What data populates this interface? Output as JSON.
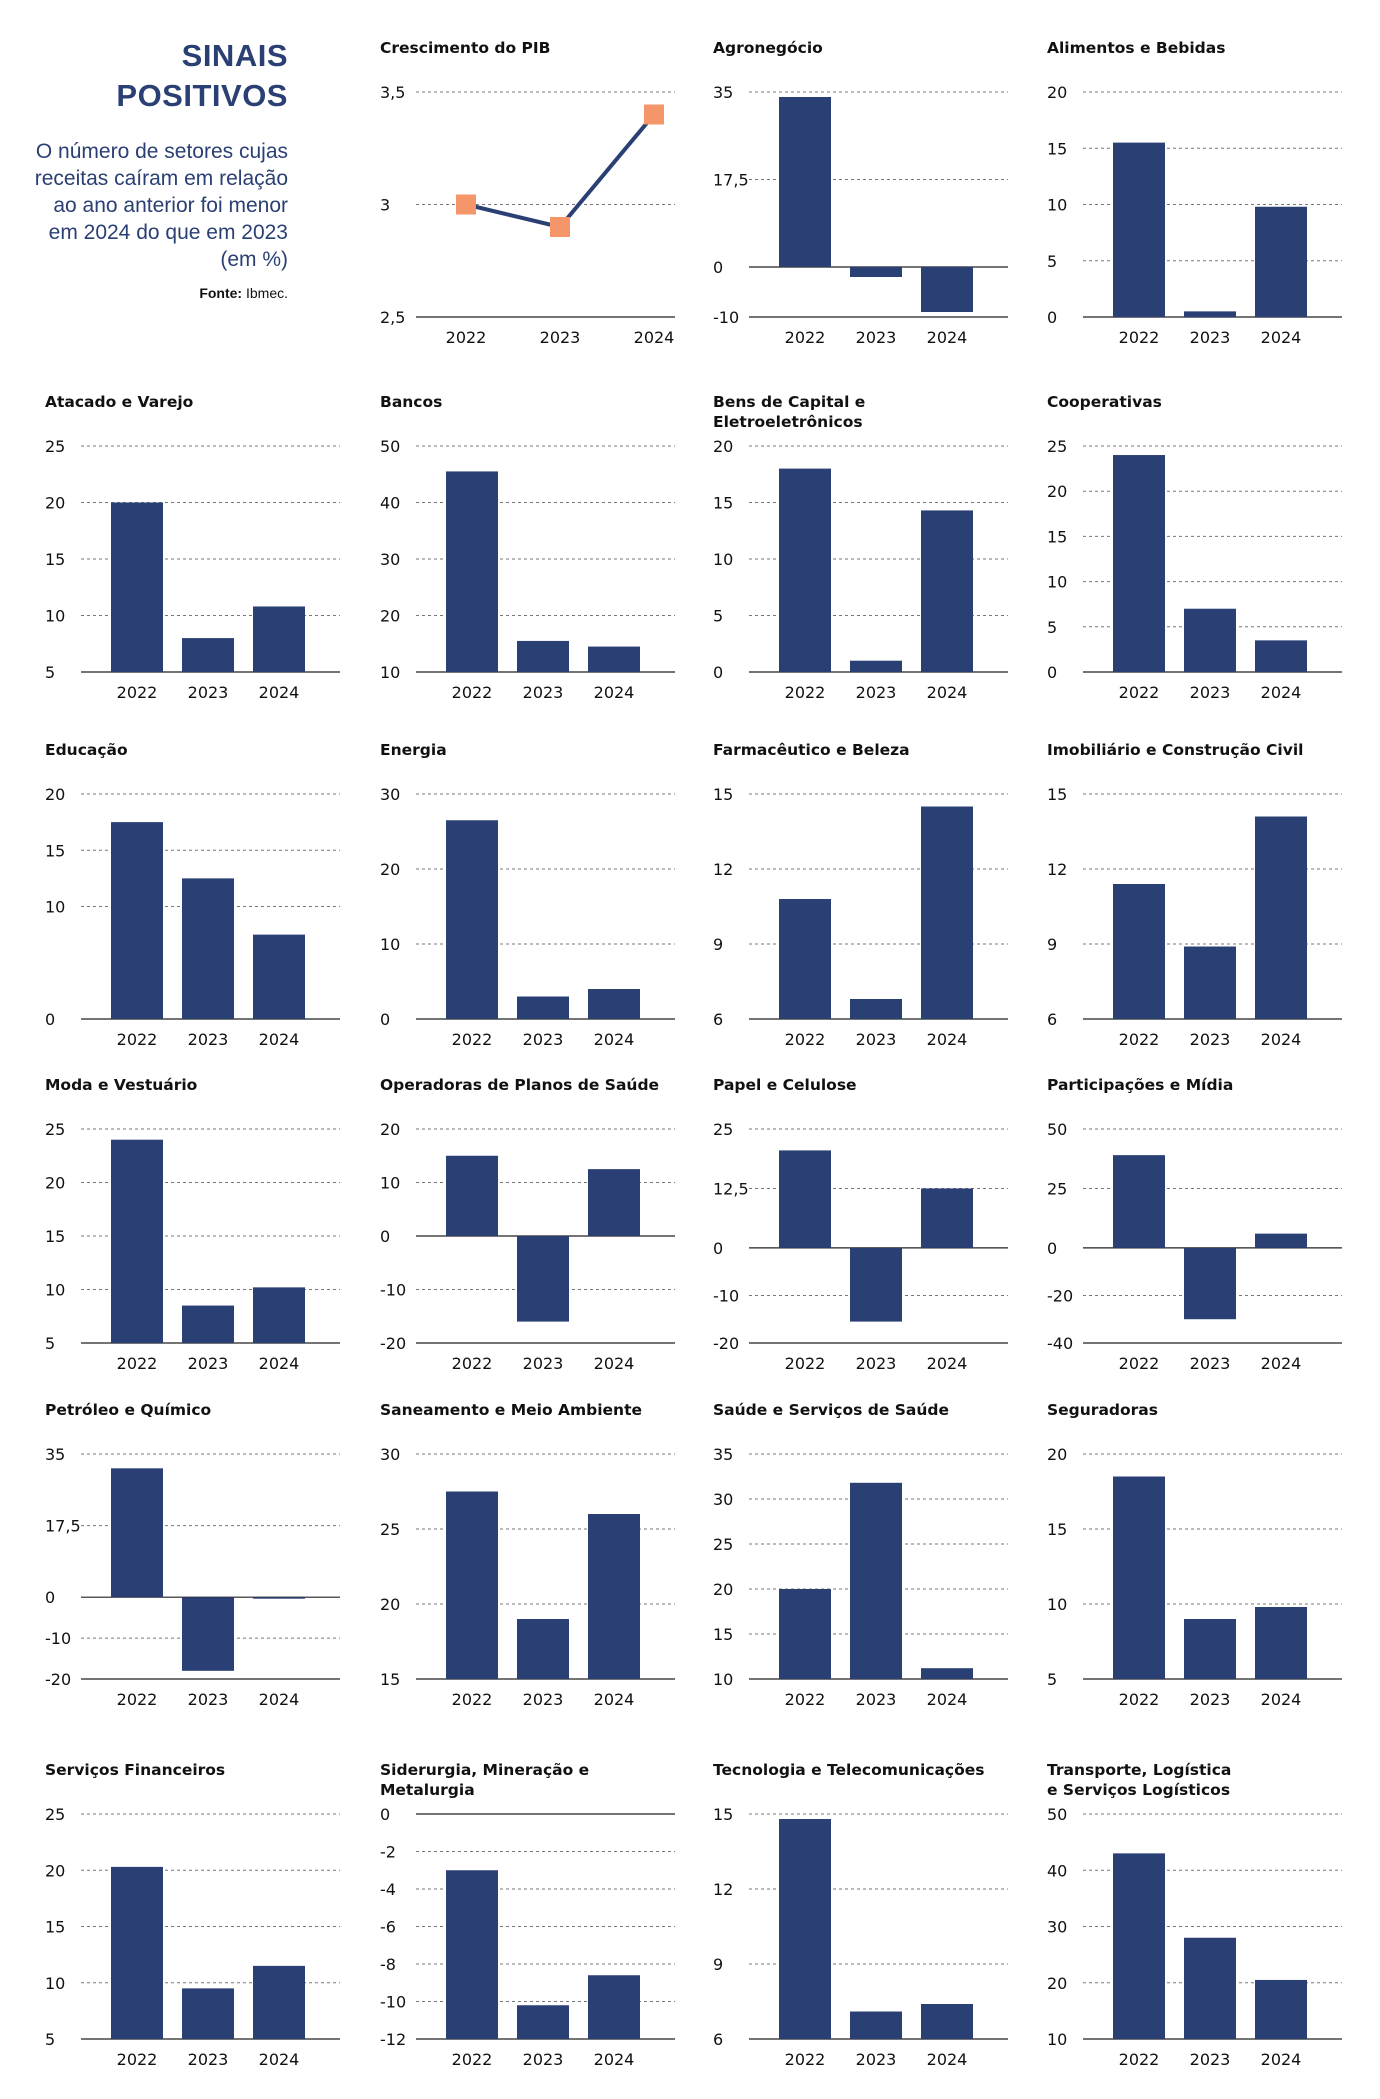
{
  "header": {
    "title_line1": "SINAIS",
    "title_line2": "POSITIVOS",
    "subtitle": "O número de setores cujas receitas caíram em relação ao ano anterior foi menor em 2024 do que em 2023 (em %)",
    "source_label": "Fonte:",
    "source_value": "Ibmec."
  },
  "colors": {
    "bar": "#2a3f73",
    "marker": "#f4956a",
    "title": "#2a3f73"
  },
  "chart_data": [
    {
      "type": "line",
      "title": "Crescimento do PIB",
      "categories": [
        "2022",
        "2023",
        "2024"
      ],
      "values": [
        3.0,
        2.9,
        3.4
      ],
      "ylim": [
        2.5,
        3.5
      ],
      "yticks": [
        "2,5",
        "3",
        "3,5"
      ],
      "yticks_num": [
        2.5,
        3,
        3.5
      ]
    },
    {
      "type": "bar",
      "title": "Agronegócio",
      "categories": [
        "2022",
        "2023",
        "2024"
      ],
      "values": [
        34,
        -2,
        -9
      ],
      "ylim": [
        -10,
        35
      ],
      "yticks": [
        "-10",
        "0",
        "17,5",
        "35"
      ],
      "yticks_num": [
        -10,
        0,
        17.5,
        35
      ]
    },
    {
      "type": "bar",
      "title": "Alimentos e Bebidas",
      "categories": [
        "2022",
        "2023",
        "2024"
      ],
      "values": [
        15.5,
        0.5,
        9.8
      ],
      "ylim": [
        0,
        20
      ],
      "yticks": [
        "0",
        "5",
        "10",
        "15",
        "20"
      ],
      "yticks_num": [
        0,
        5,
        10,
        15,
        20
      ]
    },
    {
      "type": "bar",
      "title": "Atacado e Varejo",
      "categories": [
        "2022",
        "2023",
        "2024"
      ],
      "values": [
        20,
        8,
        10.8
      ],
      "ylim": [
        5,
        25
      ],
      "yticks": [
        "5",
        "10",
        "15",
        "20",
        "25"
      ],
      "yticks_num": [
        5,
        10,
        15,
        20,
        25
      ]
    },
    {
      "type": "bar",
      "title": "Bancos",
      "categories": [
        "2022",
        "2023",
        "2024"
      ],
      "values": [
        45.5,
        15.5,
        14.5
      ],
      "ylim": [
        10,
        50
      ],
      "yticks": [
        "10",
        "20",
        "30",
        "40",
        "50"
      ],
      "yticks_num": [
        10,
        20,
        30,
        40,
        50
      ]
    },
    {
      "type": "bar",
      "title": "Bens de Capital e Eletroeletrônicos",
      "categories": [
        "2022",
        "2023",
        "2024"
      ],
      "values": [
        18,
        1,
        14.3
      ],
      "ylim": [
        0,
        20
      ],
      "yticks": [
        "0",
        "5",
        "10",
        "15",
        "20"
      ],
      "yticks_num": [
        0,
        5,
        10,
        15,
        20
      ]
    },
    {
      "type": "bar",
      "title": "Cooperativas",
      "categories": [
        "2022",
        "2023",
        "2024"
      ],
      "values": [
        24,
        7,
        3.5
      ],
      "ylim": [
        0,
        25
      ],
      "yticks": [
        "0",
        "5",
        "10",
        "15",
        "20",
        "25"
      ],
      "yticks_num": [
        0,
        5,
        10,
        15,
        20,
        25
      ]
    },
    {
      "type": "bar",
      "title": "Educação",
      "categories": [
        "2022",
        "2023",
        "2024"
      ],
      "values": [
        17.5,
        12.5,
        7.5
      ],
      "ylim": [
        0,
        20
      ],
      "yticks": [
        "0",
        "10",
        "15",
        "20"
      ],
      "yticks_num": [
        0,
        10,
        15,
        20
      ]
    },
    {
      "type": "bar",
      "title": "Energia",
      "categories": [
        "2022",
        "2023",
        "2024"
      ],
      "values": [
        26.5,
        3,
        4
      ],
      "ylim": [
        0,
        30
      ],
      "yticks": [
        "0",
        "10",
        "20",
        "30"
      ],
      "yticks_num": [
        0,
        10,
        20,
        30
      ]
    },
    {
      "type": "bar",
      "title": "Farmacêutico e Beleza",
      "categories": [
        "2022",
        "2023",
        "2024"
      ],
      "values": [
        10.8,
        6.8,
        14.5
      ],
      "ylim": [
        6,
        15
      ],
      "yticks": [
        "6",
        "9",
        "12",
        "15"
      ],
      "yticks_num": [
        6,
        9,
        12,
        15
      ]
    },
    {
      "type": "bar",
      "title": "Imobiliário e Construção Civil",
      "categories": [
        "2022",
        "2023",
        "2024"
      ],
      "values": [
        11.4,
        8.9,
        14.1
      ],
      "ylim": [
        6,
        15
      ],
      "yticks": [
        "6",
        "9",
        "12",
        "15"
      ],
      "yticks_num": [
        6,
        9,
        12,
        15
      ]
    },
    {
      "type": "bar",
      "title": "Moda e Vestuário",
      "categories": [
        "2022",
        "2023",
        "2024"
      ],
      "values": [
        24,
        8.5,
        10.2
      ],
      "ylim": [
        5,
        25
      ],
      "yticks": [
        "5",
        "10",
        "15",
        "20",
        "25"
      ],
      "yticks_num": [
        5,
        10,
        15,
        20,
        25
      ]
    },
    {
      "type": "bar",
      "title": "Operadoras de Planos de Saúde",
      "categories": [
        "2022",
        "2023",
        "2024"
      ],
      "values": [
        15,
        -16,
        12.5
      ],
      "ylim": [
        -20,
        20
      ],
      "yticks": [
        "-20",
        "-10",
        "0",
        "10",
        "20"
      ],
      "yticks_num": [
        -20,
        -10,
        0,
        10,
        20
      ]
    },
    {
      "type": "bar",
      "title": "Papel e Celulose",
      "categories": [
        "2022",
        "2023",
        "2024"
      ],
      "values": [
        20.5,
        -15.5,
        12.5
      ],
      "ylim": [
        -20,
        25
      ],
      "yticks": [
        "-20",
        "-10",
        "0",
        "12,5",
        "25"
      ],
      "yticks_num": [
        -20,
        -10,
        0,
        12.5,
        25
      ]
    },
    {
      "type": "bar",
      "title": "Participações e Mídia",
      "categories": [
        "2022",
        "2023",
        "2024"
      ],
      "values": [
        39,
        -30,
        6
      ],
      "ylim": [
        -40,
        50
      ],
      "yticks": [
        "-40",
        "-20",
        "0",
        "25",
        "50"
      ],
      "yticks_num": [
        -40,
        -20,
        0,
        25,
        50
      ]
    },
    {
      "type": "bar",
      "title": "Petróleo e Químico",
      "categories": [
        "2022",
        "2023",
        "2024"
      ],
      "values": [
        31.5,
        -18,
        -0.3
      ],
      "ylim": [
        -20,
        35
      ],
      "yticks": [
        "-20",
        "-10",
        "0",
        "17,5",
        "35"
      ],
      "yticks_num": [
        -20,
        -10,
        0,
        17.5,
        35
      ]
    },
    {
      "type": "bar",
      "title": "Saneamento e Meio Ambiente",
      "categories": [
        "2022",
        "2023",
        "2024"
      ],
      "values": [
        27.5,
        19,
        26
      ],
      "ylim": [
        15,
        30
      ],
      "yticks": [
        "15",
        "20",
        "25",
        "30"
      ],
      "yticks_num": [
        15,
        20,
        25,
        30
      ]
    },
    {
      "type": "bar",
      "title": "Saúde e Serviços de Saúde",
      "categories": [
        "2022",
        "2023",
        "2024"
      ],
      "values": [
        20,
        31.8,
        11.2
      ],
      "ylim": [
        10,
        35
      ],
      "yticks": [
        "10",
        "15",
        "20",
        "25",
        "30",
        "35"
      ],
      "yticks_num": [
        10,
        15,
        20,
        25,
        30,
        35
      ]
    },
    {
      "type": "bar",
      "title": "Seguradoras",
      "categories": [
        "2022",
        "2023",
        "2024"
      ],
      "values": [
        18.5,
        9,
        9.8
      ],
      "ylim": [
        5,
        20
      ],
      "yticks": [
        "5",
        "10",
        "15",
        "20"
      ],
      "yticks_num": [
        5,
        10,
        15,
        20
      ]
    },
    {
      "type": "bar",
      "title": "Serviços Financeiros",
      "categories": [
        "2022",
        "2023",
        "2024"
      ],
      "values": [
        20.3,
        9.5,
        11.5
      ],
      "ylim": [
        5,
        25
      ],
      "yticks": [
        "5",
        "10",
        "15",
        "20",
        "25"
      ],
      "yticks_num": [
        5,
        10,
        15,
        20,
        25
      ]
    },
    {
      "type": "bar",
      "title": "Siderurgia, Mineração e Metalurgia",
      "categories": [
        "2022",
        "2023",
        "2024"
      ],
      "values": [
        -3,
        -10.2,
        -8.6
      ],
      "ylim": [
        -12,
        0
      ],
      "yticks": [
        "-12",
        "-10",
        "-8",
        "-6",
        "-4",
        "-2",
        "0"
      ],
      "yticks_num": [
        -12,
        -10,
        -8,
        -6,
        -4,
        -2,
        0
      ]
    },
    {
      "type": "bar",
      "title": "Tecnologia e Telecomunicações",
      "categories": [
        "2022",
        "2023",
        "2024"
      ],
      "values": [
        14.8,
        7.1,
        7.4
      ],
      "ylim": [
        6,
        15
      ],
      "yticks": [
        "6",
        "9",
        "12",
        "15"
      ],
      "yticks_num": [
        6,
        9,
        12,
        15
      ]
    },
    {
      "type": "bar",
      "title": "Transporte, Logística\ne Serviços Logísticos",
      "categories": [
        "2022",
        "2023",
        "2024"
      ],
      "values": [
        43,
        28,
        20.5
      ],
      "ylim": [
        10,
        50
      ],
      "yticks": [
        "10",
        "20",
        "30",
        "40",
        "50"
      ],
      "yticks_num": [
        10,
        20,
        30,
        40,
        50
      ]
    }
  ]
}
